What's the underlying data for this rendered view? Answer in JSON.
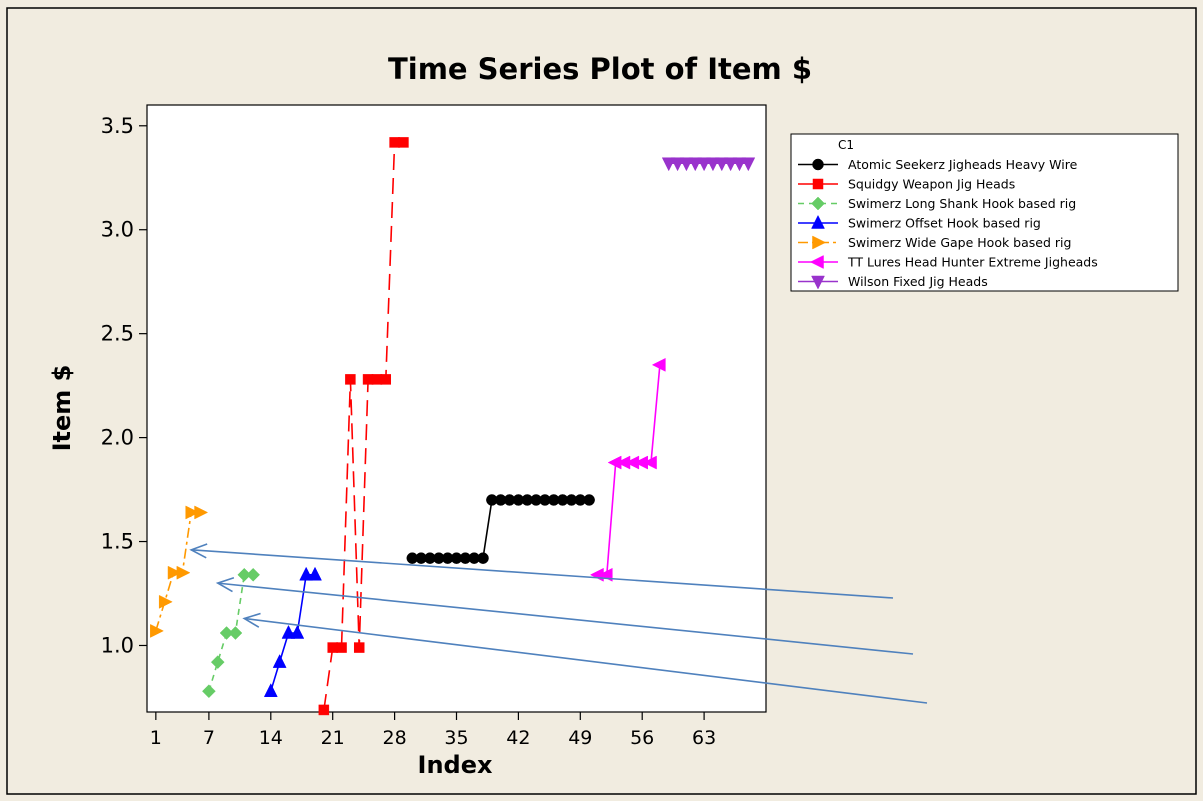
{
  "chart_data": {
    "type": "line",
    "title": "Time Series Plot of Item $",
    "xlabel": "Index",
    "ylabel": "Item $",
    "xlim": [
      0,
      70
    ],
    "ylim": [
      0.68,
      3.6
    ],
    "x_ticks": [
      1,
      7,
      14,
      21,
      28,
      35,
      42,
      49,
      56,
      63
    ],
    "y_ticks": [
      1.0,
      1.5,
      2.0,
      2.5,
      3.0,
      3.5
    ],
    "y_tick_labels": [
      "1.0",
      "1.5",
      "2.0",
      "2.5",
      "3.0",
      "3.5"
    ],
    "grid": false,
    "legend": {
      "title": "C1",
      "placement": "top-right"
    },
    "series": [
      {
        "name": "Atomic Seekerz Jigheads Heavy Wire",
        "color": "#000000",
        "marker": "circle",
        "dash": "",
        "points": [
          [
            30,
            1.42
          ],
          [
            31,
            1.42
          ],
          [
            32,
            1.42
          ],
          [
            33,
            1.42
          ],
          [
            34,
            1.42
          ],
          [
            35,
            1.42
          ],
          [
            36,
            1.42
          ],
          [
            37,
            1.42
          ],
          [
            38,
            1.42
          ],
          [
            39,
            1.7
          ],
          [
            40,
            1.7
          ],
          [
            41,
            1.7
          ],
          [
            42,
            1.7
          ],
          [
            43,
            1.7
          ],
          [
            44,
            1.7
          ],
          [
            45,
            1.7
          ],
          [
            46,
            1.7
          ],
          [
            47,
            1.7
          ],
          [
            48,
            1.7
          ],
          [
            49,
            1.7
          ],
          [
            50,
            1.7
          ]
        ]
      },
      {
        "name": "Squidgy Weapon Jig Heads",
        "color": "#ff0000",
        "marker": "square",
        "dash": "16 8",
        "points": [
          [
            20,
            0.69
          ],
          [
            21,
            0.99
          ],
          [
            22,
            0.99
          ],
          [
            23,
            2.28
          ],
          [
            24,
            0.99
          ],
          [
            25,
            2.28
          ],
          [
            26,
            2.28
          ],
          [
            27,
            2.28
          ],
          [
            28,
            3.42
          ],
          [
            29,
            3.42
          ]
        ]
      },
      {
        "name": "Swimerz Long Shank Hook based rig",
        "color": "#66cc66",
        "marker": "diamond",
        "dash": "6 5",
        "points": [
          [
            7,
            0.78
          ],
          [
            8,
            0.92
          ],
          [
            9,
            1.06
          ],
          [
            10,
            1.06
          ],
          [
            11,
            1.34
          ],
          [
            12,
            1.34
          ]
        ]
      },
      {
        "name": "Swimerz Offset Hook based rig",
        "color": "#0000ff",
        "marker": "triangle-up",
        "dash": "",
        "points": [
          [
            14,
            0.78
          ],
          [
            15,
            0.92
          ],
          [
            16,
            1.06
          ],
          [
            17,
            1.06
          ],
          [
            18,
            1.34
          ],
          [
            19,
            1.34
          ]
        ]
      },
      {
        "name": "Swimerz Wide Gape Hook based rig",
        "color": "#ff9900",
        "marker": "triangle-right",
        "dash": "10 4 3 4",
        "points": [
          [
            1,
            1.07
          ],
          [
            2,
            1.21
          ],
          [
            3,
            1.35
          ],
          [
            4,
            1.35
          ],
          [
            5,
            1.64
          ],
          [
            6,
            1.64
          ]
        ]
      },
      {
        "name": "TT Lures Head Hunter Extreme Jigheads",
        "color": "#ff00ff",
        "marker": "triangle-left",
        "dash": "",
        "points": [
          [
            51,
            1.34
          ],
          [
            52,
            1.34
          ],
          [
            53,
            1.88
          ],
          [
            54,
            1.88
          ],
          [
            55,
            1.88
          ],
          [
            56,
            1.88
          ],
          [
            57,
            1.88
          ],
          [
            58,
            2.35
          ]
        ]
      },
      {
        "name": "Wilson Fixed Jig Heads",
        "color": "#9933cc",
        "marker": "triangle-down",
        "dash": "",
        "points": [
          [
            59,
            3.32
          ],
          [
            60,
            3.32
          ],
          [
            61,
            3.32
          ],
          [
            62,
            3.32
          ],
          [
            63,
            3.32
          ],
          [
            64,
            3.32
          ],
          [
            65,
            3.32
          ],
          [
            66,
            3.32
          ],
          [
            67,
            3.32
          ],
          [
            68,
            3.32
          ]
        ]
      }
    ],
    "annotations": {
      "arrow_color": "#4f81bd",
      "arrows": [
        {
          "to": [
            5,
            1.46
          ]
        },
        {
          "to": [
            8,
            1.3
          ]
        },
        {
          "to": [
            11,
            1.13
          ]
        }
      ]
    }
  }
}
